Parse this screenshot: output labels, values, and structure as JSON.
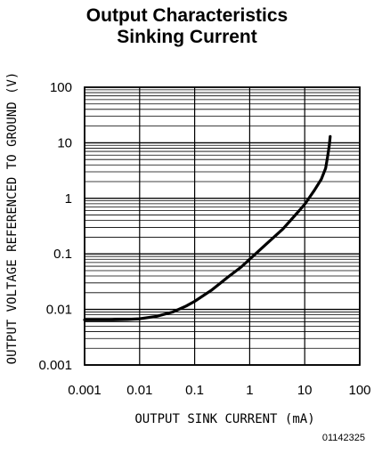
{
  "chart_data": {
    "type": "line",
    "title": "Output Characteristics",
    "subtitle": "Sinking Current",
    "xlabel": "OUTPUT SINK CURRENT (mA)",
    "ylabel": "OUTPUT VOLTAGE REFERENCED TO GROUND (V)",
    "x_scale": "log",
    "y_scale": "log",
    "xlim": [
      0.001,
      100
    ],
    "ylim": [
      0.001,
      100
    ],
    "x_ticks": [
      "0.001",
      "0.01",
      "0.1",
      "1",
      "10",
      "100"
    ],
    "y_ticks": [
      "0.001",
      "0.01",
      "0.1",
      "1",
      "10",
      "100"
    ],
    "grid": true,
    "series": [
      {
        "x": [
          0.001,
          0.003,
          0.006,
          0.01,
          0.02,
          0.04,
          0.07,
          0.1,
          0.2,
          0.4,
          0.7,
          1,
          2,
          4,
          7,
          10,
          15,
          20,
          24,
          26,
          28,
          29
        ],
        "y": [
          0.0065,
          0.0065,
          0.0066,
          0.0068,
          0.0075,
          0.009,
          0.0115,
          0.014,
          0.022,
          0.038,
          0.058,
          0.08,
          0.15,
          0.28,
          0.52,
          0.78,
          1.4,
          2.2,
          3.5,
          5.5,
          9,
          13
        ]
      }
    ]
  },
  "figure_id": "01142325"
}
